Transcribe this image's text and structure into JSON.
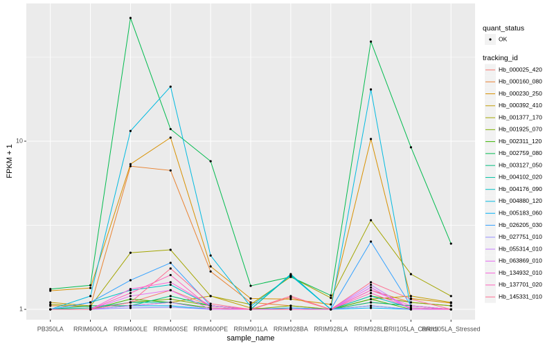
{
  "chart_data": {
    "type": "line",
    "x_label": "sample_name",
    "y_label": "FPKM + 1",
    "log_y": true,
    "grid": true,
    "legend_position": "right",
    "point_legend": {
      "title": "quant_status",
      "levels": [
        "OK"
      ]
    },
    "legend_title": "tracking_id",
    "ylim": [
      0.868,
      65.9
    ],
    "yticks": [
      1,
      10
    ],
    "categories": [
      "PB350LA",
      "RRIM600LA",
      "RRIM600LE",
      "RRIM600SE",
      "RRIM600PE",
      "RRIM901LA",
      "RRIM928BA",
      "RRIM928LA",
      "RRIM928LE",
      "RRII105LA_Control",
      "RRII105LA_Stressed"
    ],
    "series": [
      {
        "name": "Hb_000025_420",
        "color": "#F8766D",
        "values": [
          1,
          1,
          1.1,
          1.3,
          1.05,
          1,
          1.18,
          1,
          1.1,
          1.05,
          1
        ]
      },
      {
        "name": "Hb_000160_080",
        "color": "#EA8331",
        "values": [
          1.05,
          1.04,
          7.1,
          6.7,
          1.68,
          1.1,
          1.05,
          1,
          1.3,
          1.1,
          1.05
        ]
      },
      {
        "name": "Hb_000230_250",
        "color": "#D89000",
        "values": [
          1.29,
          1.34,
          7.3,
          10.5,
          1.8,
          1.16,
          1.15,
          1.07,
          10.3,
          1.16,
          1.09
        ]
      },
      {
        "name": "Hb_000392_410",
        "color": "#C09B00",
        "values": [
          1.1,
          1.05,
          1.05,
          1.1,
          1.2,
          1.02,
          1,
          1,
          1.15,
          1.2,
          1.1
        ]
      },
      {
        "name": "Hb_001377_170",
        "color": "#A3A500",
        "values": [
          1.07,
          1.04,
          2.17,
          2.26,
          1.2,
          1.07,
          1.56,
          1.17,
          3.39,
          1.62,
          1.2
        ]
      },
      {
        "name": "Hb_001925_070",
        "color": "#7CAE00",
        "values": [
          1,
          1,
          1.1,
          1.15,
          1.05,
          1,
          1.05,
          1,
          1.2,
          1.1,
          1.05
        ]
      },
      {
        "name": "Hb_002311_120",
        "color": "#39B600",
        "values": [
          1,
          1,
          1.15,
          1.1,
          1.02,
          1,
          1,
          1,
          1.15,
          1,
          1
        ]
      },
      {
        "name": "Hb_002759_080",
        "color": "#00BB4E",
        "values": [
          1.32,
          1.39,
          54,
          11.8,
          7.6,
          1.38,
          1.56,
          1.21,
          39.1,
          9.2,
          2.46
        ]
      },
      {
        "name": "Hb_003127_050",
        "color": "#00BF7D",
        "values": [
          1,
          1.05,
          1.05,
          1.2,
          1.05,
          1,
          1.6,
          1,
          1.1,
          1.05,
          1
        ]
      },
      {
        "name": "Hb_004102_020",
        "color": "#00C1A3",
        "values": [
          1,
          1.02,
          1.1,
          1.1,
          1,
          1,
          1.02,
          1,
          1.05,
          1,
          1
        ]
      },
      {
        "name": "Hb_004176_090",
        "color": "#00BFC4",
        "values": [
          1,
          1.1,
          1.3,
          1.4,
          1.05,
          1,
          1.62,
          1,
          1.2,
          1.02,
          1
        ]
      },
      {
        "name": "Hb_004880_120",
        "color": "#00BAE0",
        "values": [
          1,
          1.2,
          11.5,
          21.1,
          2.09,
          1.04,
          1.59,
          1,
          20.3,
          1,
          1
        ]
      },
      {
        "name": "Hb_005183_060",
        "color": "#00B0F6",
        "values": [
          1,
          1,
          1.05,
          1.05,
          1,
          1,
          1,
          1,
          1.02,
          1,
          1
        ]
      },
      {
        "name": "Hb_026205_030",
        "color": "#35A2FF",
        "values": [
          1,
          1.1,
          1.49,
          1.89,
          1.05,
          1,
          1.02,
          1,
          2.53,
          1.05,
          1
        ]
      },
      {
        "name": "Hb_027751_010",
        "color": "#9590FF",
        "values": [
          1,
          1,
          1.02,
          1.03,
          1,
          1,
          1,
          1,
          1.05,
          1,
          1
        ]
      },
      {
        "name": "Hb_055314_010",
        "color": "#C77CFF",
        "values": [
          1,
          1,
          1.05,
          1.1,
          1,
          1,
          1,
          1,
          1.4,
          1,
          1
        ]
      },
      {
        "name": "Hb_063869_010",
        "color": "#E76BF3",
        "values": [
          1,
          1,
          1.2,
          1.3,
          1,
          1,
          1,
          1,
          1.35,
          1,
          1
        ]
      },
      {
        "name": "Hb_134932_010",
        "color": "#FA62DB",
        "values": [
          1,
          1,
          1.32,
          1.45,
          1.05,
          1,
          1,
          1,
          1.3,
          1.05,
          1
        ]
      },
      {
        "name": "Hb_137701_020",
        "color": "#FF62BC",
        "values": [
          1,
          1,
          1.25,
          1.6,
          1.02,
          1,
          1,
          1,
          1.25,
          1.02,
          1
        ]
      },
      {
        "name": "Hb_145331_010",
        "color": "#FF6C91",
        "values": [
          1,
          1,
          1.1,
          1.75,
          1.08,
          1,
          1.2,
          1,
          1.45,
          1.15,
          1
        ]
      }
    ]
  }
}
